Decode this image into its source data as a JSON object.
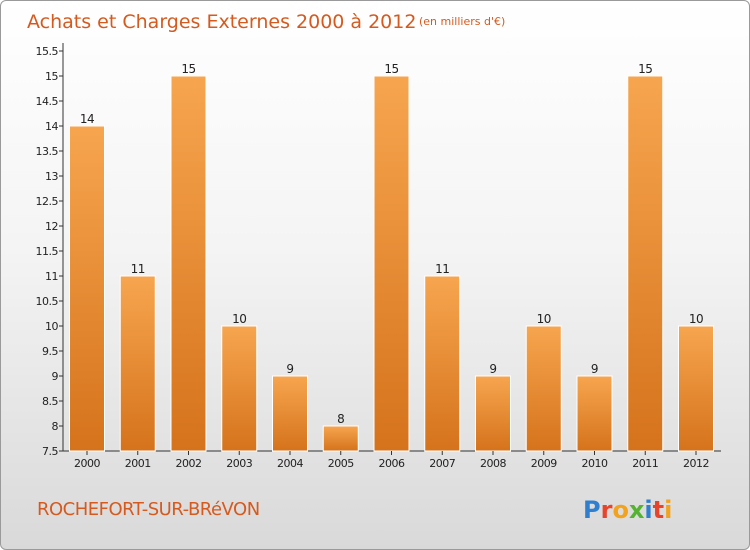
{
  "chart_data": {
    "type": "bar",
    "title": "Achats et Charges Externes 2000 à 2012",
    "subtitle": "(en milliers d'€)",
    "categories": [
      "2000",
      "2001",
      "2002",
      "2003",
      "2004",
      "2005",
      "2006",
      "2007",
      "2008",
      "2009",
      "2010",
      "2011",
      "2012"
    ],
    "values": [
      14,
      11,
      15,
      10,
      9,
      8,
      15,
      11,
      9,
      10,
      9,
      15,
      10
    ],
    "data_labels": [
      "14",
      "11",
      "15",
      "10",
      "9",
      "8",
      "15",
      "11",
      "9",
      "10",
      "9",
      "15",
      "10"
    ],
    "ylim": [
      7.5,
      15.5
    ],
    "yticks": [
      "7.5",
      "8",
      "8.5",
      "9",
      "9.5",
      "10",
      "10.5",
      "11",
      "11.5",
      "12",
      "12.5",
      "13",
      "13.5",
      "14",
      "14.5",
      "15",
      "15.5"
    ],
    "grid": false,
    "bar_color_top": "#f7a54f",
    "bar_color_bottom": "#d5731c",
    "bar_border": "#ffffff"
  },
  "footer": {
    "commune": "ROCHEFORT-SUR-BRéVON",
    "logo_letters": [
      {
        "ch": "P",
        "color": "#2f7fd0"
      },
      {
        "ch": "r",
        "color": "#e8442b"
      },
      {
        "ch": "o",
        "color": "#f2a21d"
      },
      {
        "ch": "x",
        "color": "#55b332"
      },
      {
        "ch": "i",
        "color": "#2f7fd0"
      },
      {
        "ch": "t",
        "color": "#e8442b"
      },
      {
        "ch": "i",
        "color": "#f2a21d"
      }
    ]
  }
}
